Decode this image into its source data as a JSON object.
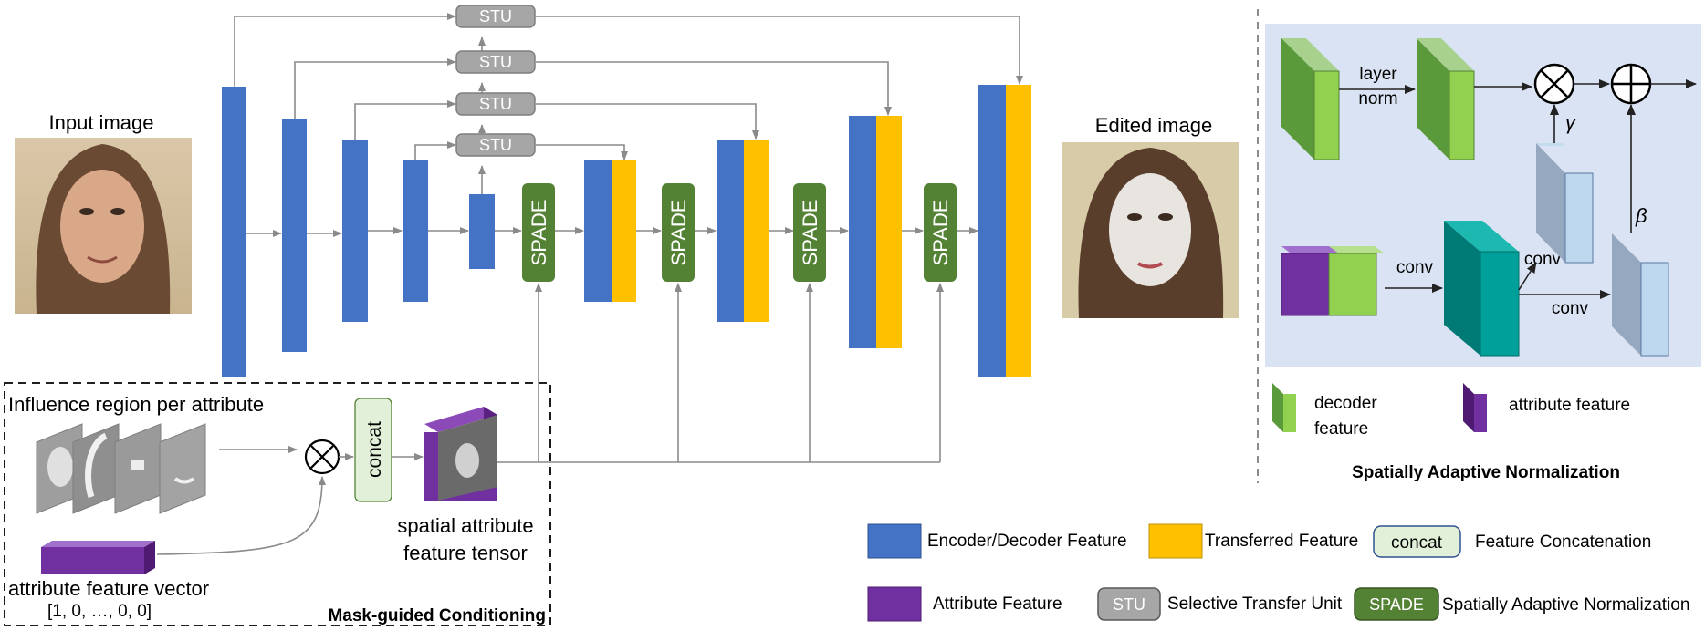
{
  "labels": {
    "input_image": "Input image",
    "edited_image": "Edited image",
    "stu": "STU",
    "spade": "SPADE",
    "influence_region": "Influence region per attribute",
    "concat": "concat",
    "spatial_tensor_line1": "spatial attribute",
    "spatial_tensor_line2": "feature tensor",
    "attr_vector": "attribute feature vector",
    "attr_vector_value": "[1, 0, …, 0, 0]",
    "mask_guided": "Mask-guided Conditioning",
    "layer_norm_1": "layer",
    "layer_norm_2": "norm",
    "gamma": "γ",
    "beta": "β",
    "conv": "conv",
    "decoder_feature_1": "decoder",
    "decoder_feature_2": "feature",
    "attribute_feature": "attribute feature",
    "span_title": "Spatially Adaptive Normalization"
  },
  "legend": {
    "encoder_decoder": "Encoder/Decoder Feature",
    "transferred": "Transferred Feature",
    "concat_box": "concat",
    "concat_desc": "Feature Concatenation",
    "attribute": "Attribute Feature",
    "stu_box": "STU",
    "stu_desc": "Selective Transfer Unit",
    "spade_box": "SPADE",
    "spade_desc": "Spatially Adaptive Normalization"
  },
  "colors": {
    "blue": "#4472c4",
    "yellow": "#ffc000",
    "green": "#548235",
    "gray": "#a6a6a6",
    "purple": "#7030a0",
    "panel": "#dae3f3",
    "concat_fill": "#e2f0d9",
    "teal": "#00a09a",
    "light_green": "#92d050",
    "light_blue": "#bdd7ee"
  }
}
